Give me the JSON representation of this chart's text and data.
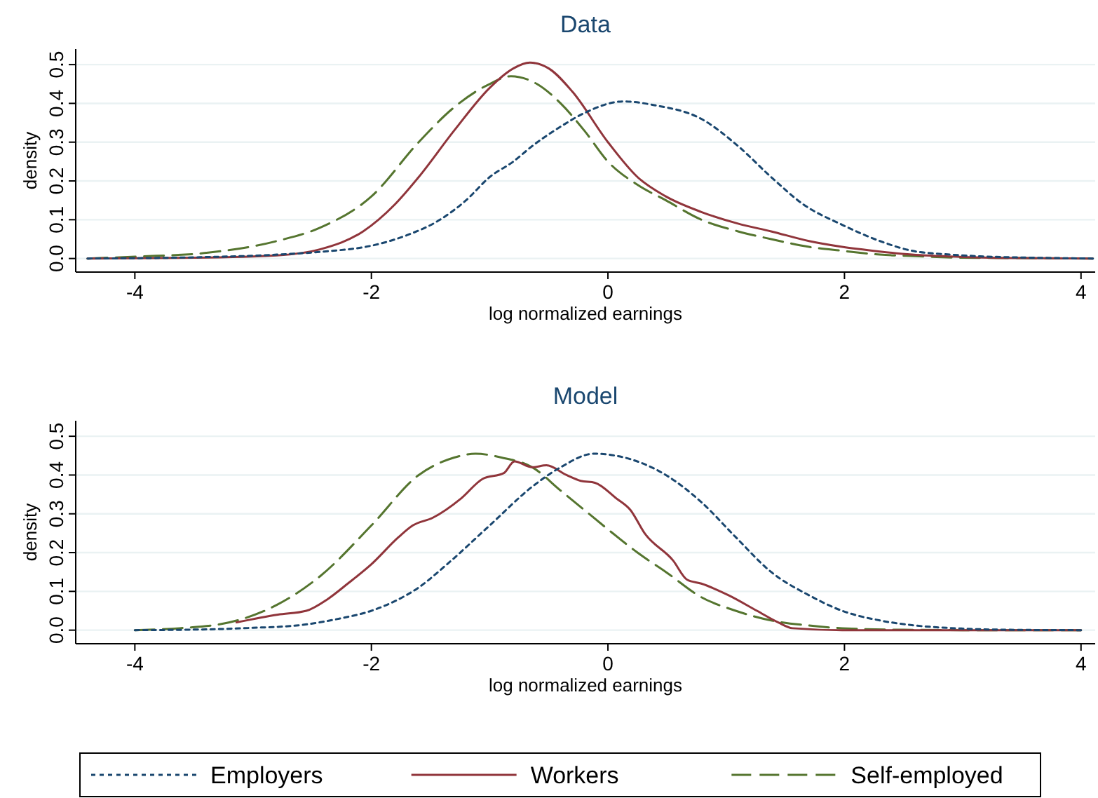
{
  "chart_data": [
    {
      "type": "line",
      "title": "Data",
      "xlabel": "log normalized earnings",
      "ylabel": "density",
      "xlim": [
        -4.5,
        4.12
      ],
      "ylim": [
        -0.035,
        0.54
      ],
      "xticks": [
        -4,
        -2,
        0,
        2,
        4
      ],
      "yticks": [
        {
          "value": 0,
          "label": "0.0"
        },
        0.1,
        0.2,
        0.3,
        0.4,
        0.5
      ],
      "grid": "y",
      "legend": false,
      "marker": "none",
      "series": [
        {
          "color": "#1a476f",
          "line_style": "dotted",
          "x": [
            -4.4,
            -3.5,
            -2.8,
            -2.4,
            -2.0,
            -1.7,
            -1.42,
            -1.2,
            -1.0,
            -0.8,
            -0.64,
            -0.4,
            -0.2,
            0.13,
            0.4,
            0.79,
            1.1,
            1.38,
            1.65,
            1.98,
            2.3,
            2.57,
            2.9,
            3.2,
            3.6,
            4.1
          ],
          "values": [
            0,
            0.003,
            0.01,
            0.018,
            0.033,
            0.06,
            0.1,
            0.15,
            0.21,
            0.25,
            0.29,
            0.34,
            0.375,
            0.405,
            0.395,
            0.36,
            0.29,
            0.21,
            0.14,
            0.087,
            0.045,
            0.02,
            0.01,
            0.005,
            0.002,
            0
          ]
        },
        {
          "color": "#90353b",
          "line_style": "solid",
          "x": [
            -4.4,
            -3.5,
            -2.8,
            -2.43,
            -2.07,
            -1.8,
            -1.6,
            -1.3,
            -1.0,
            -0.8,
            -0.66,
            -0.5,
            -0.3,
            0,
            0.25,
            0.49,
            0.79,
            1.1,
            1.38,
            1.7,
            1.98,
            2.3,
            2.57,
            3.0,
            3.5,
            4.1
          ],
          "values": [
            0,
            0.002,
            0.008,
            0.024,
            0.07,
            0.14,
            0.21,
            0.33,
            0.44,
            0.49,
            0.505,
            0.49,
            0.43,
            0.3,
            0.21,
            0.16,
            0.12,
            0.09,
            0.07,
            0.045,
            0.03,
            0.018,
            0.01,
            0.004,
            0.001,
            0
          ]
        },
        {
          "color": "#55752f",
          "line_style": "dashed",
          "x": [
            -4.4,
            -3.98,
            -3.38,
            -2.8,
            -2.43,
            -2.0,
            -1.6,
            -1.3,
            -1.0,
            -0.82,
            -0.6,
            -0.4,
            -0.2,
            0,
            0.25,
            0.49,
            0.79,
            1.1,
            1.38,
            1.7,
            1.98,
            2.3,
            2.6,
            3.0,
            3.5,
            4.1
          ],
          "values": [
            0,
            0.005,
            0.015,
            0.045,
            0.08,
            0.16,
            0.3,
            0.39,
            0.45,
            0.47,
            0.45,
            0.4,
            0.33,
            0.25,
            0.19,
            0.15,
            0.1,
            0.07,
            0.05,
            0.03,
            0.02,
            0.01,
            0.006,
            0.002,
            0.001,
            0
          ]
        }
      ]
    },
    {
      "type": "line",
      "title": "Model",
      "xlabel": "log normalized earnings",
      "ylabel": "density",
      "xlim": [
        -4.5,
        4.12
      ],
      "ylim": [
        -0.035,
        0.54
      ],
      "xticks": [
        -4,
        -2,
        0,
        2,
        4
      ],
      "yticks": [
        {
          "value": 0,
          "label": "0.0"
        },
        0.1,
        0.2,
        0.3,
        0.4,
        0.5
      ],
      "grid": "y",
      "legend": "bottom",
      "marker": "none",
      "series": [
        {
          "name": "Employers",
          "color": "#1a476f",
          "line_style": "dotted",
          "x": [
            -4,
            -3.4,
            -3.0,
            -2.6,
            -2.3,
            -2.0,
            -1.8,
            -1.6,
            -1.36,
            -1.0,
            -0.64,
            -0.4,
            -0.12,
            0.2,
            0.49,
            0.79,
            1.08,
            1.38,
            1.7,
            1.98,
            2.3,
            2.57,
            3.0,
            3.4,
            4
          ],
          "values": [
            0,
            0.002,
            0.006,
            0.013,
            0.028,
            0.05,
            0.075,
            0.11,
            0.17,
            0.27,
            0.37,
            0.42,
            0.455,
            0.44,
            0.4,
            0.33,
            0.24,
            0.15,
            0.09,
            0.05,
            0.025,
            0.013,
            0.004,
            0.001,
            0
          ]
        },
        {
          "name": "Workers",
          "color": "#90353b",
          "line_style": "solid",
          "x": [
            -3.14,
            -2.79,
            -2.55,
            -2.37,
            -2.2,
            -2.0,
            -1.77,
            -1.65,
            -1.48,
            -1.24,
            -1.06,
            -0.88,
            -0.79,
            -0.64,
            -0.52,
            -0.35,
            -0.23,
            -0.11,
            0.07,
            0.19,
            0.31,
            0.55,
            0.67,
            0.79,
            1.02,
            1.26,
            1.44,
            1.56,
            1.98,
            2.5,
            3.0,
            4
          ],
          "values": [
            0.02,
            0.04,
            0.05,
            0.08,
            0.12,
            0.17,
            0.24,
            0.27,
            0.29,
            0.34,
            0.39,
            0.405,
            0.435,
            0.42,
            0.425,
            0.4,
            0.385,
            0.38,
            0.34,
            0.31,
            0.25,
            0.18,
            0.13,
            0.12,
            0.09,
            0.05,
            0.02,
            0.005,
            0,
            0,
            0,
            0
          ]
        },
        {
          "name": "Self-employed",
          "color": "#55752f",
          "line_style": "dashed",
          "x": [
            -4,
            -3.62,
            -3.2,
            -2.8,
            -2.43,
            -2.0,
            -1.6,
            -1.3,
            -1.12,
            -0.9,
            -0.64,
            -0.4,
            -0.2,
            0,
            0.25,
            0.49,
            0.79,
            1.08,
            1.38,
            1.7,
            1.98,
            2.5,
            3.0,
            4
          ],
          "values": [
            0,
            0.005,
            0.02,
            0.065,
            0.14,
            0.27,
            0.4,
            0.445,
            0.455,
            0.445,
            0.42,
            0.36,
            0.31,
            0.26,
            0.2,
            0.15,
            0.085,
            0.05,
            0.025,
            0.012,
            0.005,
            0.001,
            0,
            0
          ]
        }
      ]
    }
  ]
}
